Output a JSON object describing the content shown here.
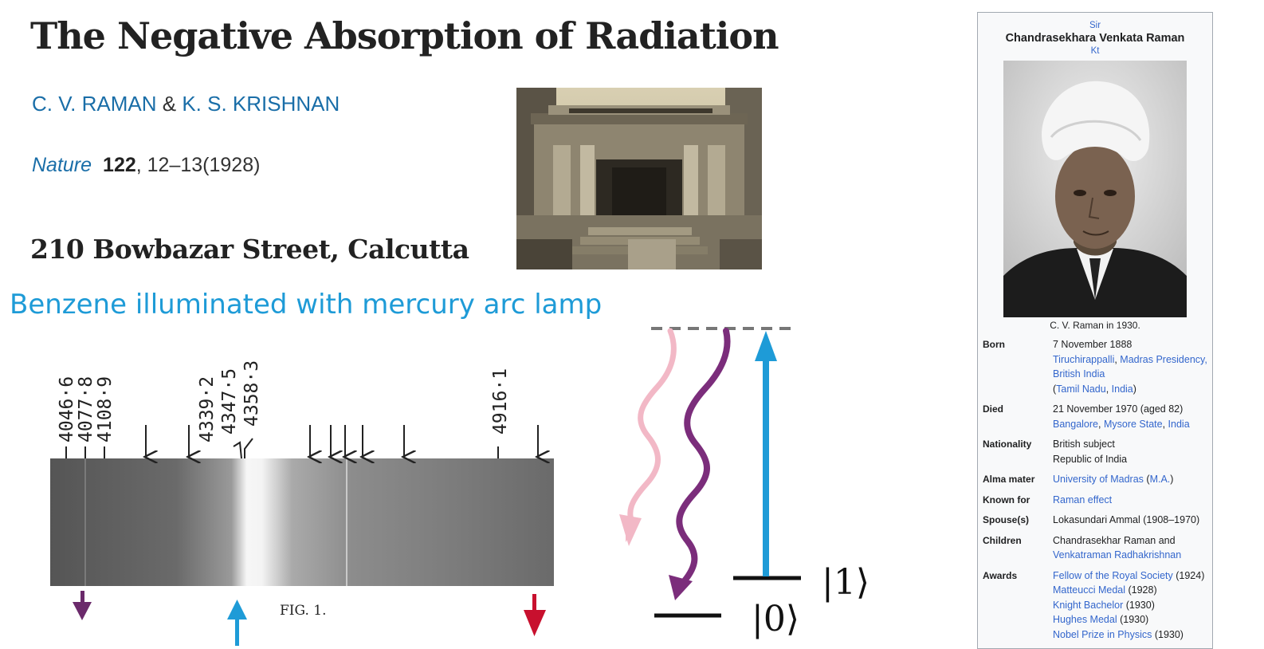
{
  "paper": {
    "title": "The Negative Absorption of Radiation",
    "author1": "C. V. RAMAN",
    "amp": "&",
    "author2": "K. S. KRISHNAN",
    "journal": "Nature",
    "volume": "122",
    "pages": ", 12–13(1928)",
    "address": "210 Bowbazar Street, Calcutta"
  },
  "slide": {
    "heading": "Benzene illuminated with mercury arc lamp"
  },
  "spectrum": {
    "wavelength_labels": [
      "4046·6",
      "4077·8",
      "4108·9",
      "4339·2",
      "4347·5",
      "4358·3",
      "4916·1"
    ],
    "figure_label": "FIG. 1.",
    "arrow_colors": {
      "stokes": "#6b2a6b",
      "pump": "#1e9bd7",
      "antistokes": "#c8102e"
    }
  },
  "energy_diagram": {
    "ground_label": "|0⟩",
    "excited_label": "|1⟩",
    "colors": {
      "pump": "#1e9bd7",
      "stokes": "#7b2d7b",
      "antistokes": "#f2b8c6",
      "virtual": "#777777"
    }
  },
  "infobox": {
    "prefix": "Sir",
    "name": "Chandrasekhara Venkata Raman",
    "suffix": "Kt",
    "caption": "C. V. Raman in 1930.",
    "born_label": "Born",
    "born_date": "7 November 1888",
    "born_place_1": "Tiruchirappalli",
    "born_place_sep": ", ",
    "born_place_2": "Madras Presidency,",
    "born_place_3": "British India",
    "born_modern_open": "(",
    "born_modern_1": "Tamil Nadu",
    "born_modern_sep": ", ",
    "born_modern_2": "India",
    "born_modern_close": ")",
    "died_label": "Died",
    "died_date": "21 November 1970 (aged 82)",
    "died_place_1": "Bangalore",
    "died_place_sep": ", ",
    "died_place_2": "Mysore State",
    "died_place_sep2": ", ",
    "died_place_3": "India",
    "nationality_label": "Nationality",
    "nationality_1": "British subject",
    "nationality_2": "Republic of India",
    "alma_label": "Alma mater",
    "alma_school": "University of Madras",
    "alma_open": " (",
    "alma_degree": "M.A.",
    "alma_close": ")",
    "known_label": "Known for",
    "known_value": "Raman effect",
    "spouse_label": "Spouse(s)",
    "spouse_value": "Lokasundari Ammal (1908–1970)",
    "children_label": "Children",
    "children_1": "Chandrasekhar Raman",
    "children_and": " and",
    "children_2": "Venkatraman Radhakrishnan",
    "awards_label": "Awards",
    "awards": [
      {
        "name": "Fellow of the Royal Society",
        "year": " (1924)"
      },
      {
        "name": "Matteucci Medal",
        "year": " (1928)"
      },
      {
        "name": "Knight Bachelor",
        "year": " (1930)"
      },
      {
        "name": "Hughes Medal",
        "year": " (1930)"
      },
      {
        "name": "Nobel Prize in Physics",
        "year": " (1930)"
      }
    ]
  }
}
